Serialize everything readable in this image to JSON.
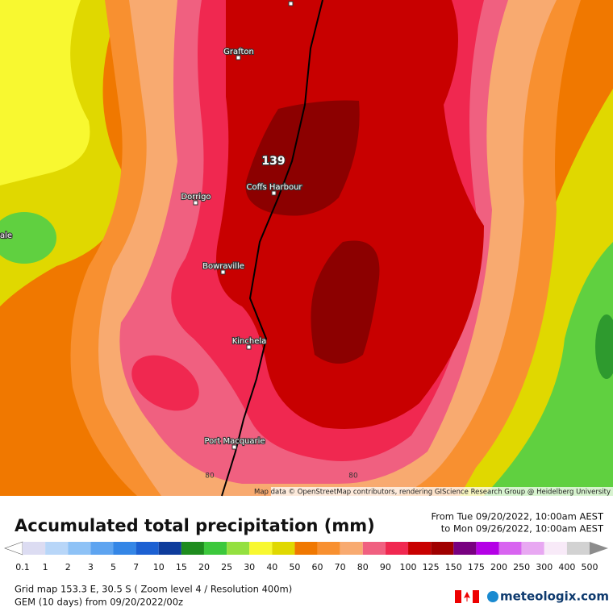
{
  "map": {
    "places": [
      "Grafton",
      "Coffs Harbour",
      "Dorrigo",
      "Bowraville",
      "Kinchela",
      "Port Macquarie",
      "ale"
    ],
    "max_value": "139",
    "contour_labels": [
      "80",
      "80"
    ],
    "attribution": "Map data © OpenStreetMap contributors, rendering GIScience Research Group @ Heidelberg University"
  },
  "legend": {
    "title": "Accumulated total precipitation (mm)",
    "period": [
      "From Tue 09/20/2022, 10:00am AEST",
      "to Mon 09/26/2022, 10:00am AEST"
    ],
    "levels": [
      0.1,
      1,
      2,
      3,
      5,
      7,
      10,
      15,
      20,
      25,
      30,
      40,
      50,
      60,
      70,
      80,
      90,
      100,
      125,
      150,
      175,
      200,
      250,
      300,
      400,
      500
    ],
    "colors": [
      "#ffffff",
      "#dcdcf2",
      "#b8d6f8",
      "#8ec2f6",
      "#5ea4f0",
      "#3486e6",
      "#1c60d2",
      "#0e3c9c",
      "#1e8c1e",
      "#3cc83c",
      "#94e040",
      "#f8f830",
      "#e0d800",
      "#f07800",
      "#f89030",
      "#f8aa70",
      "#f06080",
      "#f02850",
      "#c80000",
      "#a00000",
      "#780080",
      "#b400e6",
      "#d864f0",
      "#e8a8f2",
      "#f8eaf8",
      "#d2d2d2",
      "#8c8c8c"
    ]
  },
  "footer": {
    "grid": "Grid map 153.3 E, 30.5 S ( Zoom level 4 / Resolution 400m)",
    "model": "GEM (10 days) from 09/20/2022/00z",
    "brand": "meteologix.com"
  }
}
